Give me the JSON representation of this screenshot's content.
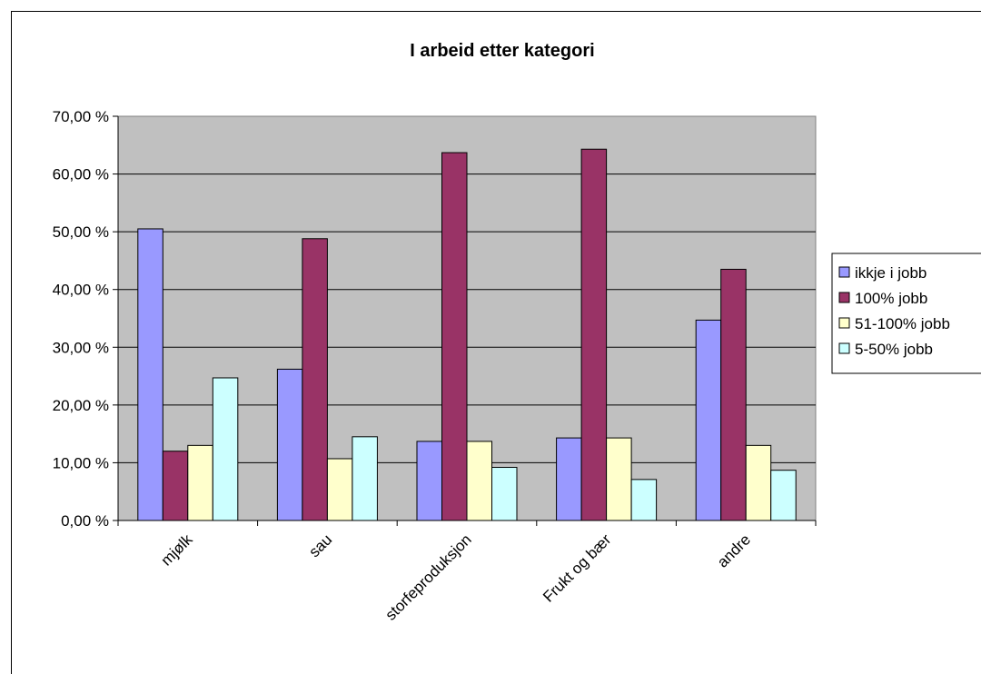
{
  "chart_data": {
    "type": "bar",
    "title": "I arbeid etter kategori",
    "categories": [
      "mjølk",
      "sau",
      "storfeproduksjon",
      "Frukt og bær",
      "andre"
    ],
    "series": [
      {
        "name": "ikkje i jobb",
        "color": "#9999ff",
        "values": [
          50.5,
          26.2,
          13.7,
          14.3,
          34.7
        ]
      },
      {
        "name": "100% jobb",
        "color": "#993366",
        "values": [
          12.0,
          48.8,
          63.7,
          64.3,
          43.5
        ]
      },
      {
        "name": "51-100% jobb",
        "color": "#ffffcc",
        "values": [
          13.0,
          10.7,
          13.7,
          14.3,
          13.0
        ]
      },
      {
        "name": "5-50% jobb",
        "color": "#ccffff",
        "values": [
          24.7,
          14.5,
          9.2,
          7.1,
          8.7
        ]
      }
    ],
    "ylim": [
      0,
      70
    ],
    "yticks": [
      "0,00 %",
      "10,00 %",
      "20,00 %",
      "30,00 %",
      "40,00 %",
      "50,00 %",
      "60,00 %",
      "70,00 %"
    ],
    "plot_background": "#c0c0c0",
    "grid": true,
    "legend_position": "right"
  }
}
